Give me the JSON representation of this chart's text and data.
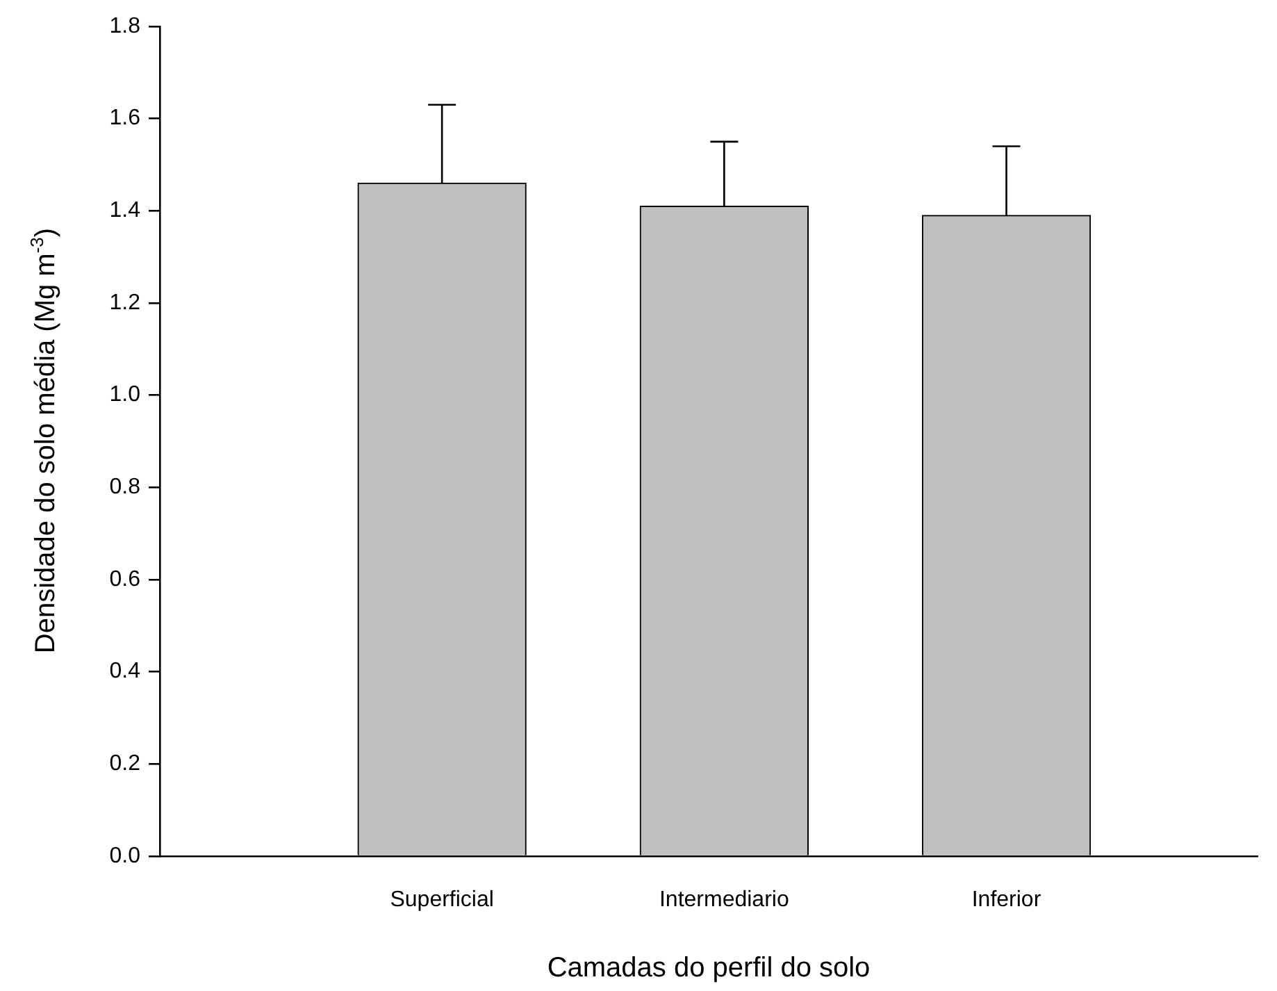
{
  "chart_data": {
    "type": "bar",
    "xlabel": "Camadas do perfil do solo",
    "ylabel": "Densidade do solo média (Mg m$^{-3}$)",
    "categories": [
      "Superficial",
      "Intermediario",
      "Inferior"
    ],
    "values": [
      1.46,
      1.41,
      1.39
    ],
    "errors": [
      0.17,
      0.14,
      0.15
    ],
    "color": "#c0c0c0",
    "ylim": [
      0,
      1.8
    ],
    "yticks": [
      {
        "value": 0,
        "label": "0.0"
      },
      {
        "value": 0.2,
        "label": "0.2"
      },
      {
        "value": 0.4,
        "label": "0.4"
      },
      {
        "value": 0.6,
        "label": "0.6"
      },
      {
        "value": 0.8,
        "label": "0.8"
      },
      {
        "value": 1,
        "label": "1.0"
      },
      {
        "value": 1.2,
        "label": "1.2"
      },
      {
        "value": 1.4,
        "label": "1.4"
      },
      {
        "value": 1.6,
        "label": "1.6"
      },
      {
        "value": 1.8,
        "label": "1.8"
      }
    ]
  }
}
